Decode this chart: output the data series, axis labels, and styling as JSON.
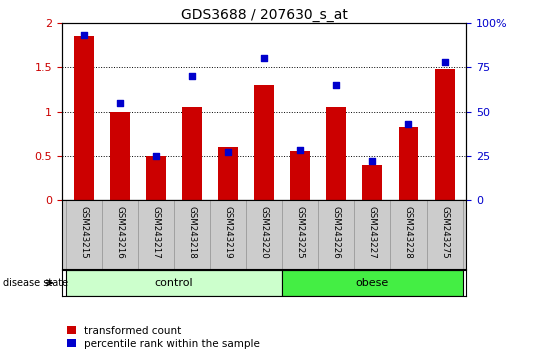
{
  "title": "GDS3688 / 207630_s_at",
  "samples": [
    "GSM243215",
    "GSM243216",
    "GSM243217",
    "GSM243218",
    "GSM243219",
    "GSM243220",
    "GSM243225",
    "GSM243226",
    "GSM243227",
    "GSM243228",
    "GSM243275"
  ],
  "transformed_count": [
    1.85,
    1.0,
    0.5,
    1.05,
    0.6,
    1.3,
    0.55,
    1.05,
    0.4,
    0.82,
    1.48
  ],
  "percentile_rank": [
    93,
    55,
    25,
    70,
    27,
    80,
    28,
    65,
    22,
    43,
    78
  ],
  "left_ylim": [
    0,
    2
  ],
  "right_ylim": [
    0,
    100
  ],
  "left_yticks": [
    0,
    0.5,
    1.0,
    1.5,
    2.0
  ],
  "left_yticklabels": [
    "0",
    "0.5",
    "1",
    "1.5",
    "2"
  ],
  "right_yticks": [
    0,
    25,
    50,
    75,
    100
  ],
  "right_yticklabels": [
    "0",
    "25",
    "50",
    "75",
    "100%"
  ],
  "bar_color": "#cc0000",
  "dot_color": "#0000cc",
  "label_bg": "#cccccc",
  "control_color": "#ccffcc",
  "obese_color": "#44ee44",
  "legend_red_label": "transformed count",
  "legend_blue_label": "percentile rank within the sample",
  "disease_state_label": "disease state",
  "n_control": 6,
  "n_obese": 5
}
